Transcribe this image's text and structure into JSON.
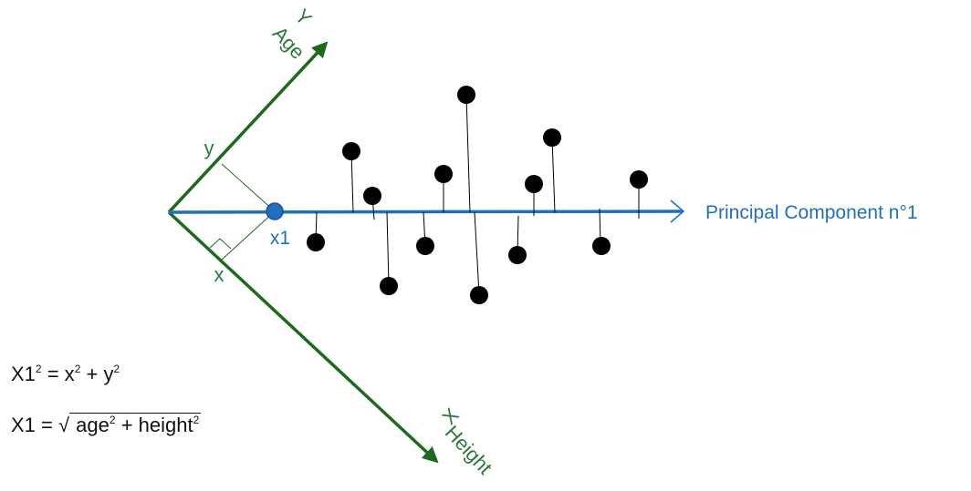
{
  "colors": {
    "axes": "#1b6b1b",
    "axis_label": "#2a7a3a",
    "principal": "#1f6fbf",
    "points": "#000000",
    "projection": "#000000",
    "formula": "#111111"
  },
  "labels": {
    "y_axis_letter": "Y",
    "y_axis_name": "Age",
    "x_axis_letter": "X",
    "x_axis_name": "Height",
    "y_component": "y",
    "x_component": "x",
    "projected_point": "x1",
    "principal_component": "Principal Component n°1"
  },
  "formulas": {
    "pythagoras": {
      "lhs": "X1",
      "lhs_sup": "2",
      "eq": " = x",
      "x_sup": "2",
      "plus": " + y",
      "y_sup": "2"
    },
    "sqrt": {
      "lhs": "X1 = ",
      "radical": "√",
      "term1": " age",
      "term1_sup": "2",
      "plus": " + height",
      "term2_sup": "2"
    }
  },
  "icons": {
    "right_angle": "right-angle-marker-icon",
    "arrowhead": "arrowhead-icon"
  }
}
